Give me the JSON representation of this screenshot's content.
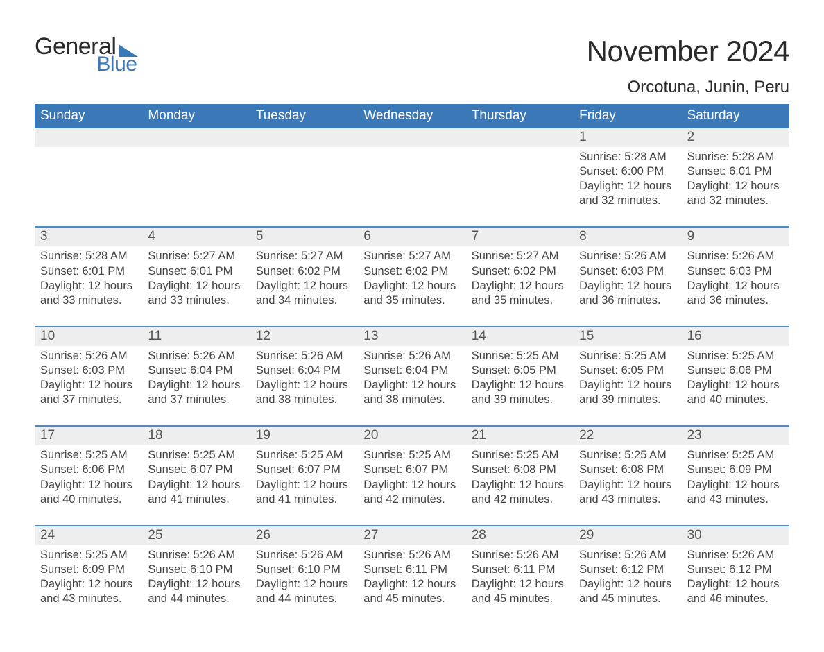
{
  "brand": {
    "part1": "General",
    "part2": "Blue"
  },
  "colors": {
    "brand_blue": "#3b78b8",
    "header_bg": "#3b78b8",
    "row_divider": "#4a8ac8",
    "daynum_bg": "#eeeeee",
    "page_bg": "#ffffff",
    "text_dark": "#333333"
  },
  "title": "November 2024",
  "location": "Orcotuna, Junin, Peru",
  "weekdays": [
    "Sunday",
    "Monday",
    "Tuesday",
    "Wednesday",
    "Thursday",
    "Friday",
    "Saturday"
  ],
  "weeks": [
    [
      null,
      null,
      null,
      null,
      null,
      {
        "n": "1",
        "sunrise": "Sunrise: 5:28 AM",
        "sunset": "Sunset: 6:00 PM",
        "dl1": "Daylight: 12 hours",
        "dl2": "and 32 minutes."
      },
      {
        "n": "2",
        "sunrise": "Sunrise: 5:28 AM",
        "sunset": "Sunset: 6:01 PM",
        "dl1": "Daylight: 12 hours",
        "dl2": "and 32 minutes."
      }
    ],
    [
      {
        "n": "3",
        "sunrise": "Sunrise: 5:28 AM",
        "sunset": "Sunset: 6:01 PM",
        "dl1": "Daylight: 12 hours",
        "dl2": "and 33 minutes."
      },
      {
        "n": "4",
        "sunrise": "Sunrise: 5:27 AM",
        "sunset": "Sunset: 6:01 PM",
        "dl1": "Daylight: 12 hours",
        "dl2": "and 33 minutes."
      },
      {
        "n": "5",
        "sunrise": "Sunrise: 5:27 AM",
        "sunset": "Sunset: 6:02 PM",
        "dl1": "Daylight: 12 hours",
        "dl2": "and 34 minutes."
      },
      {
        "n": "6",
        "sunrise": "Sunrise: 5:27 AM",
        "sunset": "Sunset: 6:02 PM",
        "dl1": "Daylight: 12 hours",
        "dl2": "and 35 minutes."
      },
      {
        "n": "7",
        "sunrise": "Sunrise: 5:27 AM",
        "sunset": "Sunset: 6:02 PM",
        "dl1": "Daylight: 12 hours",
        "dl2": "and 35 minutes."
      },
      {
        "n": "8",
        "sunrise": "Sunrise: 5:26 AM",
        "sunset": "Sunset: 6:03 PM",
        "dl1": "Daylight: 12 hours",
        "dl2": "and 36 minutes."
      },
      {
        "n": "9",
        "sunrise": "Sunrise: 5:26 AM",
        "sunset": "Sunset: 6:03 PM",
        "dl1": "Daylight: 12 hours",
        "dl2": "and 36 minutes."
      }
    ],
    [
      {
        "n": "10",
        "sunrise": "Sunrise: 5:26 AM",
        "sunset": "Sunset: 6:03 PM",
        "dl1": "Daylight: 12 hours",
        "dl2": "and 37 minutes."
      },
      {
        "n": "11",
        "sunrise": "Sunrise: 5:26 AM",
        "sunset": "Sunset: 6:04 PM",
        "dl1": "Daylight: 12 hours",
        "dl2": "and 37 minutes."
      },
      {
        "n": "12",
        "sunrise": "Sunrise: 5:26 AM",
        "sunset": "Sunset: 6:04 PM",
        "dl1": "Daylight: 12 hours",
        "dl2": "and 38 minutes."
      },
      {
        "n": "13",
        "sunrise": "Sunrise: 5:26 AM",
        "sunset": "Sunset: 6:04 PM",
        "dl1": "Daylight: 12 hours",
        "dl2": "and 38 minutes."
      },
      {
        "n": "14",
        "sunrise": "Sunrise: 5:25 AM",
        "sunset": "Sunset: 6:05 PM",
        "dl1": "Daylight: 12 hours",
        "dl2": "and 39 minutes."
      },
      {
        "n": "15",
        "sunrise": "Sunrise: 5:25 AM",
        "sunset": "Sunset: 6:05 PM",
        "dl1": "Daylight: 12 hours",
        "dl2": "and 39 minutes."
      },
      {
        "n": "16",
        "sunrise": "Sunrise: 5:25 AM",
        "sunset": "Sunset: 6:06 PM",
        "dl1": "Daylight: 12 hours",
        "dl2": "and 40 minutes."
      }
    ],
    [
      {
        "n": "17",
        "sunrise": "Sunrise: 5:25 AM",
        "sunset": "Sunset: 6:06 PM",
        "dl1": "Daylight: 12 hours",
        "dl2": "and 40 minutes."
      },
      {
        "n": "18",
        "sunrise": "Sunrise: 5:25 AM",
        "sunset": "Sunset: 6:07 PM",
        "dl1": "Daylight: 12 hours",
        "dl2": "and 41 minutes."
      },
      {
        "n": "19",
        "sunrise": "Sunrise: 5:25 AM",
        "sunset": "Sunset: 6:07 PM",
        "dl1": "Daylight: 12 hours",
        "dl2": "and 41 minutes."
      },
      {
        "n": "20",
        "sunrise": "Sunrise: 5:25 AM",
        "sunset": "Sunset: 6:07 PM",
        "dl1": "Daylight: 12 hours",
        "dl2": "and 42 minutes."
      },
      {
        "n": "21",
        "sunrise": "Sunrise: 5:25 AM",
        "sunset": "Sunset: 6:08 PM",
        "dl1": "Daylight: 12 hours",
        "dl2": "and 42 minutes."
      },
      {
        "n": "22",
        "sunrise": "Sunrise: 5:25 AM",
        "sunset": "Sunset: 6:08 PM",
        "dl1": "Daylight: 12 hours",
        "dl2": "and 43 minutes."
      },
      {
        "n": "23",
        "sunrise": "Sunrise: 5:25 AM",
        "sunset": "Sunset: 6:09 PM",
        "dl1": "Daylight: 12 hours",
        "dl2": "and 43 minutes."
      }
    ],
    [
      {
        "n": "24",
        "sunrise": "Sunrise: 5:25 AM",
        "sunset": "Sunset: 6:09 PM",
        "dl1": "Daylight: 12 hours",
        "dl2": "and 43 minutes."
      },
      {
        "n": "25",
        "sunrise": "Sunrise: 5:26 AM",
        "sunset": "Sunset: 6:10 PM",
        "dl1": "Daylight: 12 hours",
        "dl2": "and 44 minutes."
      },
      {
        "n": "26",
        "sunrise": "Sunrise: 5:26 AM",
        "sunset": "Sunset: 6:10 PM",
        "dl1": "Daylight: 12 hours",
        "dl2": "and 44 minutes."
      },
      {
        "n": "27",
        "sunrise": "Sunrise: 5:26 AM",
        "sunset": "Sunset: 6:11 PM",
        "dl1": "Daylight: 12 hours",
        "dl2": "and 45 minutes."
      },
      {
        "n": "28",
        "sunrise": "Sunrise: 5:26 AM",
        "sunset": "Sunset: 6:11 PM",
        "dl1": "Daylight: 12 hours",
        "dl2": "and 45 minutes."
      },
      {
        "n": "29",
        "sunrise": "Sunrise: 5:26 AM",
        "sunset": "Sunset: 6:12 PM",
        "dl1": "Daylight: 12 hours",
        "dl2": "and 45 minutes."
      },
      {
        "n": "30",
        "sunrise": "Sunrise: 5:26 AM",
        "sunset": "Sunset: 6:12 PM",
        "dl1": "Daylight: 12 hours",
        "dl2": "and 46 minutes."
      }
    ]
  ]
}
